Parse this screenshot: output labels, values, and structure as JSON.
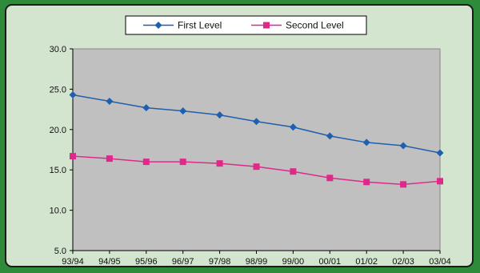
{
  "chart_data": {
    "type": "line",
    "categories": [
      "93/94",
      "94/95",
      "95/96",
      "96/97",
      "97/98",
      "98/99",
      "99/00",
      "00/01",
      "01/02",
      "02/03",
      "03/04"
    ],
    "series": [
      {
        "name": "First Level",
        "color": "#1f5fad",
        "marker": "diamond",
        "values": [
          24.3,
          23.5,
          22.7,
          22.3,
          21.8,
          21.0,
          20.3,
          19.2,
          18.4,
          18.0,
          17.1
        ]
      },
      {
        "name": "Second Level",
        "color": "#e0288a",
        "marker": "square",
        "values": [
          16.7,
          16.4,
          16.0,
          16.0,
          15.8,
          15.4,
          14.8,
          14.0,
          13.5,
          13.2,
          13.6
        ]
      }
    ],
    "ylim": [
      5.0,
      30.0
    ],
    "yticks": [
      "5.0",
      "10.0",
      "15.0",
      "20.0",
      "25.0",
      "30.0"
    ],
    "title": "",
    "xlabel": "",
    "ylabel": "",
    "grid": false,
    "legend": "top-center",
    "plot_background": "#c0c0c0",
    "outer_background": "#d3e4cf",
    "border_color": "#2e8b3a"
  }
}
